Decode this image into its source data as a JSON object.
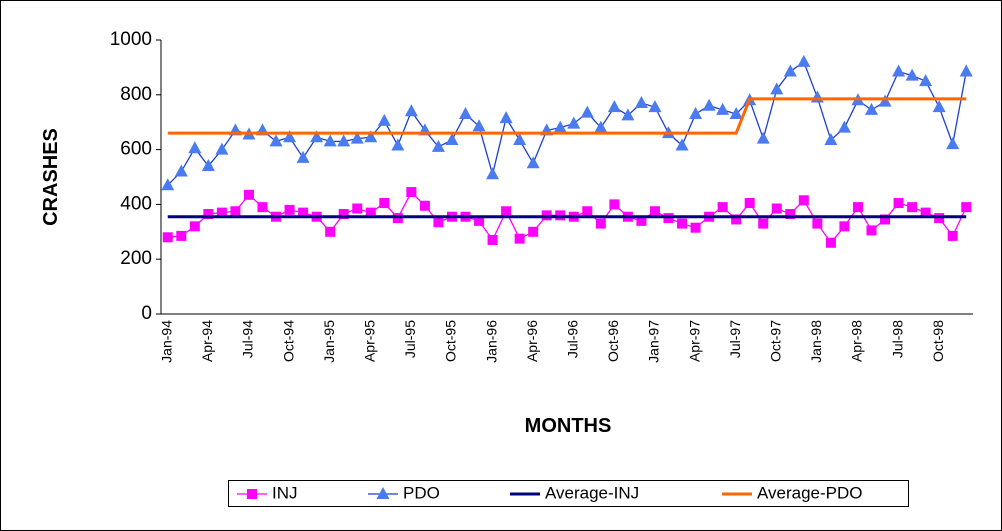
{
  "chart_data": {
    "type": "line",
    "x_label": "MONTHS",
    "y_label": "CRASHES",
    "categories": [
      "Jan-94",
      null,
      null,
      "Apr-94",
      null,
      null,
      "Jul-94",
      null,
      null,
      "Oct-94",
      null,
      null,
      "Jan-95",
      null,
      null,
      "Apr-95",
      null,
      null,
      "Jul-95",
      null,
      null,
      "Oct-95",
      null,
      null,
      "Jan-96",
      null,
      null,
      "Apr-96",
      null,
      null,
      "Jul-96",
      null,
      null,
      "Oct-96",
      null,
      null,
      "Jan-97",
      null,
      null,
      "Apr-97",
      null,
      null,
      "Jul-97",
      null,
      null,
      "Oct-97",
      null,
      null,
      "Jan-98",
      null,
      null,
      "Apr-98",
      null,
      null,
      "Jul-98",
      null,
      null,
      "Oct-98",
      null,
      null
    ],
    "ylim": [
      0,
      1000
    ],
    "yticks": [
      0,
      200,
      400,
      600,
      800,
      1000
    ],
    "legend": "bottom",
    "series": [
      {
        "name": "INJ",
        "color": "#ff00ff",
        "marker": "square",
        "values": [
          280,
          285,
          320,
          365,
          370,
          375,
          435,
          390,
          355,
          380,
          370,
          355,
          300,
          365,
          385,
          370,
          405,
          350,
          445,
          395,
          335,
          355,
          355,
          340,
          270,
          375,
          275,
          300,
          360,
          360,
          355,
          375,
          330,
          400,
          355,
          340,
          375,
          350,
          330,
          315,
          355,
          390,
          345,
          405,
          330,
          385,
          365,
          415,
          330,
          260,
          320,
          390,
          305,
          345,
          405,
          390,
          370,
          350,
          285,
          390
        ]
      },
      {
        "name": "PDO",
        "color": "#1e3fd0",
        "marker_color": "#4a7bf0",
        "marker": "triangle",
        "values": [
          470,
          520,
          605,
          540,
          600,
          670,
          655,
          670,
          630,
          645,
          570,
          645,
          630,
          630,
          640,
          645,
          705,
          615,
          740,
          670,
          610,
          635,
          730,
          685,
          510,
          715,
          635,
          550,
          670,
          680,
          695,
          735,
          680,
          755,
          725,
          770,
          755,
          660,
          615,
          730,
          760,
          745,
          730,
          780,
          640,
          820,
          885,
          920,
          790,
          635,
          680,
          780,
          745,
          775,
          885,
          870,
          850,
          755,
          620,
          885
        ]
      },
      {
        "name": "Average-INJ",
        "color": "#000080",
        "marker": "none",
        "values": [
          355,
          355,
          355,
          355,
          355,
          355,
          355,
          355,
          355,
          355,
          355,
          355,
          355,
          355,
          355,
          355,
          355,
          355,
          355,
          355,
          355,
          355,
          355,
          355,
          355,
          355,
          355,
          355,
          355,
          355,
          355,
          355,
          355,
          355,
          355,
          355,
          355,
          355,
          355,
          355,
          355,
          355,
          355,
          355,
          355,
          355,
          355,
          355,
          355,
          355,
          355,
          355,
          355,
          355,
          355,
          355,
          355,
          355,
          355,
          355
        ]
      },
      {
        "name": "Average-PDO",
        "color": "#ff6600",
        "marker": "none",
        "values": [
          660,
          660,
          660,
          660,
          660,
          660,
          660,
          660,
          660,
          660,
          660,
          660,
          660,
          660,
          660,
          660,
          660,
          660,
          660,
          660,
          660,
          660,
          660,
          660,
          660,
          660,
          660,
          660,
          660,
          660,
          660,
          660,
          660,
          660,
          660,
          660,
          660,
          660,
          660,
          660,
          660,
          660,
          660,
          785,
          785,
          785,
          785,
          785,
          785,
          785,
          785,
          785,
          785,
          785,
          785,
          785,
          785,
          785,
          785,
          785
        ]
      }
    ]
  }
}
